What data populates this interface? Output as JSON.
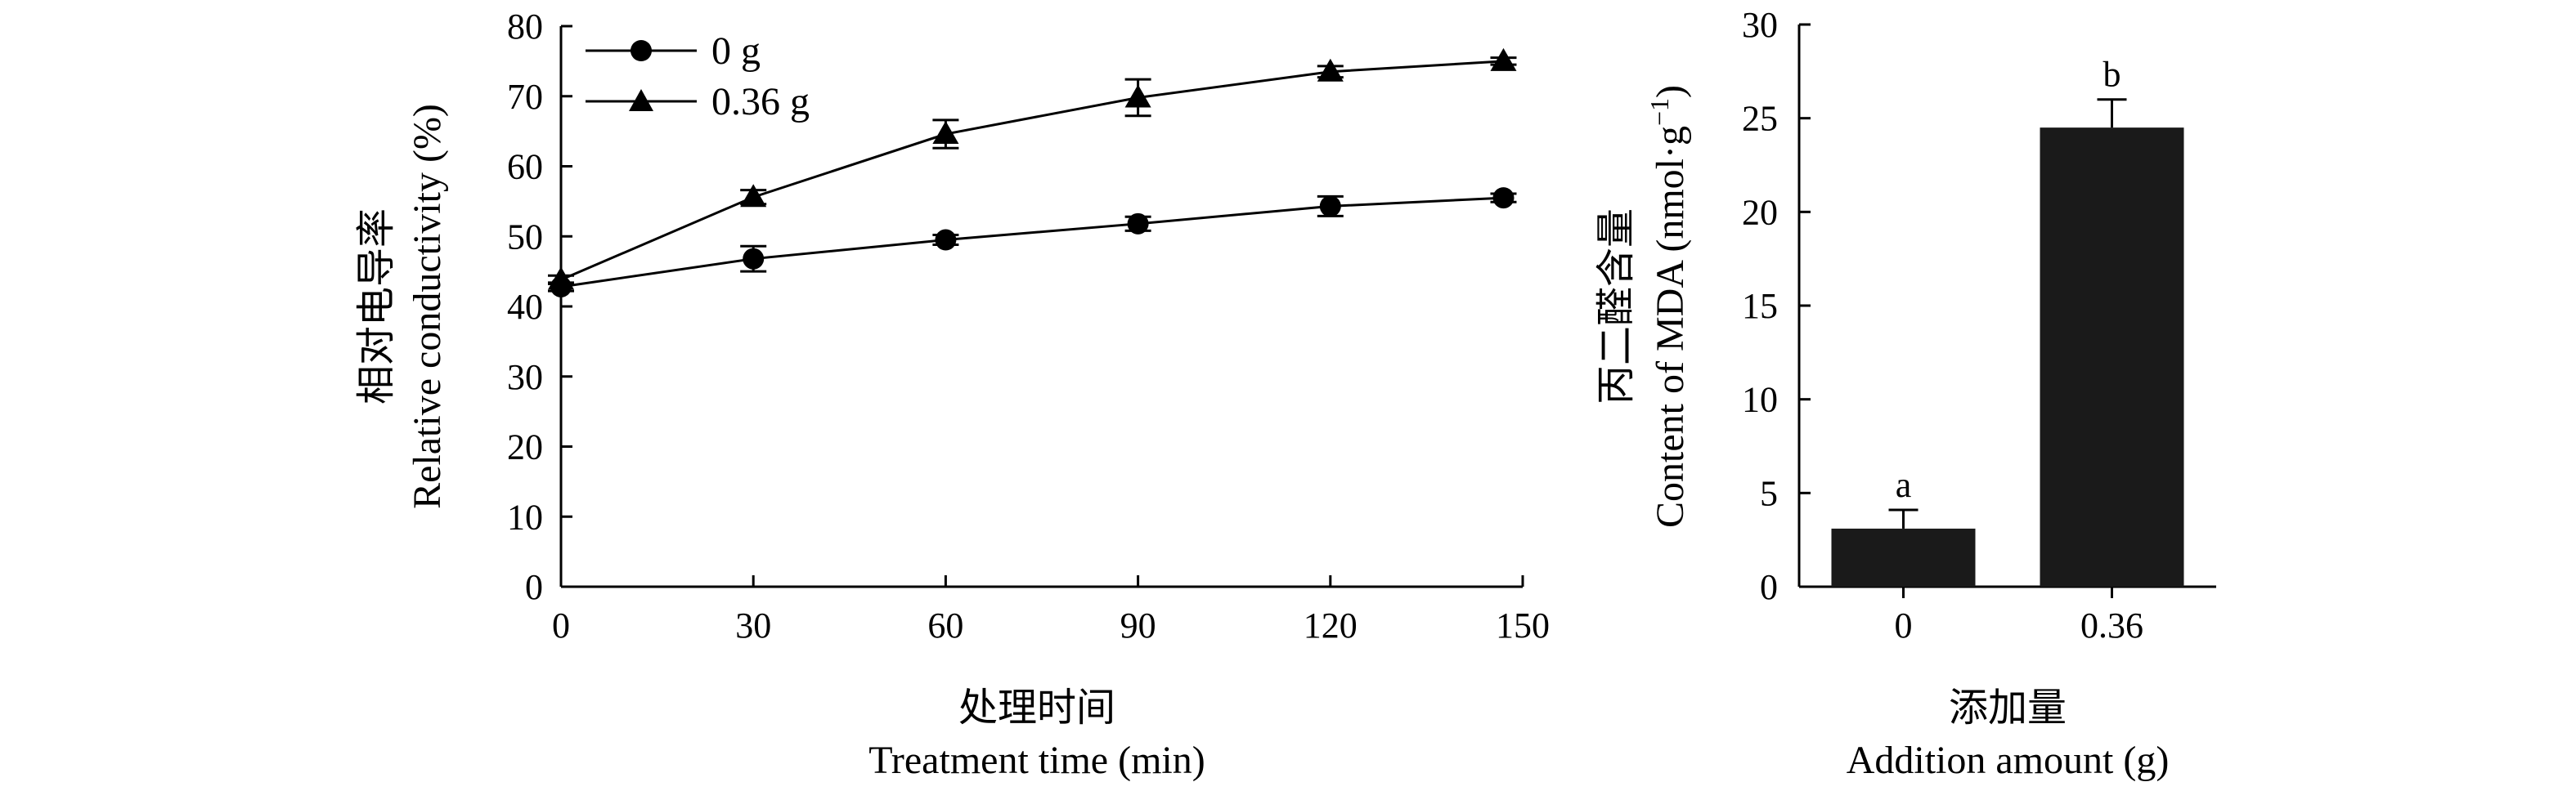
{
  "chart_data": [
    {
      "type": "line",
      "ylabel_cn": "相对电导率",
      "ylabel": "Relative conductivity (%)",
      "xlabel_cn": "处理时间",
      "xlabel": "Treatment time (min)",
      "x": [
        0,
        30,
        60,
        90,
        120,
        150
      ],
      "xticks": [
        "0",
        "30",
        "60",
        "90",
        "120",
        "150"
      ],
      "yticks": [
        "0",
        "10",
        "20",
        "30",
        "40",
        "50",
        "60",
        "70",
        "80"
      ],
      "xlim": [
        0,
        150
      ],
      "ylim": [
        0,
        80
      ],
      "legend_position": "top-left",
      "grid": false,
      "series": [
        {
          "name": "0 g",
          "marker": "circle",
          "x": [
            0,
            30,
            60,
            90,
            120,
            147
          ],
          "values": [
            42.8,
            46.8,
            49.5,
            51.8,
            54.3,
            55.5
          ],
          "errors": [
            0.6,
            1.8,
            0.7,
            1.0,
            1.4,
            0.6
          ]
        },
        {
          "name": "0.36 g",
          "marker": "triangle",
          "x": [
            0,
            30,
            60,
            90,
            120,
            147
          ],
          "values": [
            43.8,
            55.6,
            64.6,
            69.8,
            73.5,
            75.0
          ],
          "errors": [
            0.6,
            1.0,
            2.0,
            2.6,
            0.8,
            0.5
          ]
        }
      ]
    },
    {
      "type": "bar",
      "ylabel_cn": "丙二醛含量",
      "ylabel": "Content of MDA (nmol·g",
      "ylabel_sup": "−1",
      "ylabel_end": ")",
      "xlabel_cn": "添加量",
      "xlabel": "Addition amount (g)",
      "categories": [
        "0",
        "0.36"
      ],
      "values": [
        3.1,
        24.5
      ],
      "errors": [
        1.0,
        1.5
      ],
      "significance": [
        "a",
        "b"
      ],
      "yticks": [
        "0",
        "5",
        "10",
        "15",
        "20",
        "25",
        "30"
      ],
      "ylim": [
        0,
        30
      ],
      "bar_color": "#1a1a1a"
    }
  ]
}
